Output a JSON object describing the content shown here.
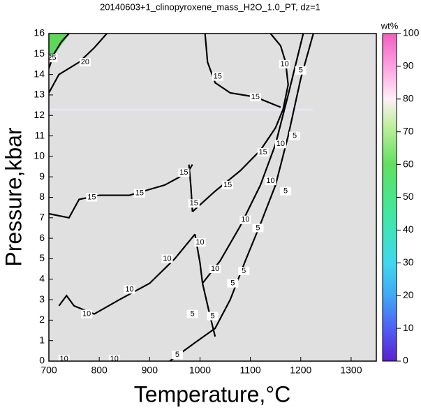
{
  "chart_data": {
    "type": "contour",
    "title": "20140603+1_clinopyroxene_mass_H2O_1.0_PT, dz=1",
    "x_label": "Temperature,°C",
    "y_label": "Pressure,kbar",
    "xlim": [
      700,
      1350
    ],
    "ylim": [
      0,
      16
    ],
    "xticks": [
      700,
      800,
      900,
      1000,
      1100,
      1200,
      1300
    ],
    "yticks": [
      0,
      1,
      2,
      3,
      4,
      5,
      6,
      7,
      8,
      9,
      10,
      11,
      12,
      13,
      14,
      15,
      16
    ],
    "colorbar_label": "wt%",
    "clim": [
      0,
      100
    ],
    "cticks": [
      0,
      10,
      20,
      30,
      40,
      50,
      60,
      70,
      80,
      90,
      100
    ],
    "contours": [
      {
        "level": 25,
        "points": [
          [
            700,
            14.3
          ],
          [
            710,
            15.0
          ],
          [
            725,
            15.6
          ],
          [
            740,
            16
          ]
        ]
      },
      {
        "level": 20,
        "points": [
          [
            700,
            13.1
          ],
          [
            720,
            14.0
          ],
          [
            760,
            14.6
          ],
          [
            790,
            15.3
          ],
          [
            815,
            16
          ]
        ]
      },
      {
        "level": 15,
        "points": [
          [
            1010,
            16
          ],
          [
            1015,
            14.6
          ],
          [
            1030,
            13.6
          ],
          [
            1060,
            13.1
          ],
          [
            1110,
            12.9
          ],
          [
            1160,
            12.4
          ]
        ]
      },
      {
        "level": 15,
        "points": [
          [
            1140,
            16
          ],
          [
            1160,
            15.4
          ],
          [
            1170,
            14.6
          ],
          [
            1175,
            13.5
          ],
          [
            1165,
            12.3
          ]
        ]
      },
      {
        "level": 15,
        "points": [
          [
            700,
            7.2
          ],
          [
            740,
            7.0
          ],
          [
            760,
            7.9
          ],
          [
            800,
            8.1
          ],
          [
            860,
            8.1
          ],
          [
            930,
            8.6
          ],
          [
            975,
            9.2
          ],
          [
            985,
            9.6
          ]
        ]
      },
      {
        "level": 15,
        "points": [
          [
            978,
            9.6
          ],
          [
            982,
            8.5
          ],
          [
            985,
            7.3
          ]
        ]
      },
      {
        "level": 15,
        "points": [
          [
            985,
            7.3
          ],
          [
            1030,
            8.3
          ],
          [
            1080,
            9.3
          ],
          [
            1120,
            10.3
          ],
          [
            1150,
            11.4
          ],
          [
            1165,
            12.3
          ]
        ]
      },
      {
        "level": 10,
        "points": [
          [
            720,
            2.7
          ],
          [
            735,
            3.2
          ],
          [
            750,
            2.7
          ],
          [
            790,
            2.3
          ],
          [
            840,
            3.0
          ],
          [
            900,
            3.8
          ],
          [
            950,
            5.0
          ],
          [
            990,
            6.2
          ]
        ]
      },
      {
        "level": 10,
        "points": [
          [
            990,
            6.2
          ],
          [
            1000,
            4.8
          ],
          [
            1005,
            3.8
          ]
        ]
      },
      {
        "level": 10,
        "points": [
          [
            1005,
            3.8
          ],
          [
            1040,
            4.9
          ],
          [
            1080,
            6.6
          ],
          [
            1120,
            8.6
          ],
          [
            1150,
            10.6
          ],
          [
            1175,
            13.0
          ],
          [
            1195,
            15.0
          ],
          [
            1205,
            16
          ]
        ]
      },
      {
        "level": 5,
        "points": [
          [
            940,
            0
          ],
          [
            990,
            0.9
          ],
          [
            1030,
            1.6
          ],
          [
            1060,
            3.0
          ],
          [
            1090,
            4.9
          ],
          [
            1120,
            6.7
          ],
          [
            1150,
            8.6
          ],
          [
            1175,
            11.0
          ],
          [
            1200,
            13.8
          ],
          [
            1225,
            16
          ]
        ]
      },
      {
        "level": 5,
        "points": [
          [
            1005,
            3.8
          ],
          [
            1020,
            2.2
          ],
          [
            1030,
            1.2
          ]
        ]
      }
    ],
    "contour_labels": [
      {
        "value": 25,
        "x": 706,
        "y": 14.8
      },
      {
        "value": 20,
        "x": 772,
        "y": 14.6
      },
      {
        "value": 15,
        "x": 1035,
        "y": 13.9
      },
      {
        "value": 15,
        "x": 1110,
        "y": 12.9
      },
      {
        "value": 10,
        "x": 1168,
        "y": 14.5
      },
      {
        "value": 5,
        "x": 1200,
        "y": 14.2
      },
      {
        "value": 15,
        "x": 1125,
        "y": 10.2
      },
      {
        "value": 10,
        "x": 1160,
        "y": 10.6
      },
      {
        "value": 5,
        "x": 1188,
        "y": 11.0
      },
      {
        "value": 15,
        "x": 785,
        "y": 8.0
      },
      {
        "value": 15,
        "x": 880,
        "y": 8.2
      },
      {
        "value": 15,
        "x": 968,
        "y": 9.2
      },
      {
        "value": 15,
        "x": 1055,
        "y": 8.6
      },
      {
        "value": 10,
        "x": 1140,
        "y": 8.8
      },
      {
        "value": 5,
        "x": 1170,
        "y": 8.3
      },
      {
        "value": 15,
        "x": 988,
        "y": 7.7
      },
      {
        "value": 10,
        "x": 1000,
        "y": 5.8
      },
      {
        "value": 10,
        "x": 935,
        "y": 5.0
      },
      {
        "value": 10,
        "x": 1090,
        "y": 6.9
      },
      {
        "value": 5,
        "x": 1115,
        "y": 6.5
      },
      {
        "value": 10,
        "x": 1030,
        "y": 4.5
      },
      {
        "value": 5,
        "x": 1087,
        "y": 4.4
      },
      {
        "value": 5,
        "x": 1065,
        "y": 3.8
      },
      {
        "value": 10,
        "x": 860,
        "y": 3.5
      },
      {
        "value": 10,
        "x": 775,
        "y": 2.3
      },
      {
        "value": 5,
        "x": 985,
        "y": 2.3
      },
      {
        "value": 5,
        "x": 1025,
        "y": 2.2
      },
      {
        "value": 5,
        "x": 955,
        "y": 0.3
      },
      {
        "value": 10,
        "x": 730,
        "y": 0.1
      },
      {
        "value": 10,
        "x": 830,
        "y": 0.1
      }
    ]
  }
}
